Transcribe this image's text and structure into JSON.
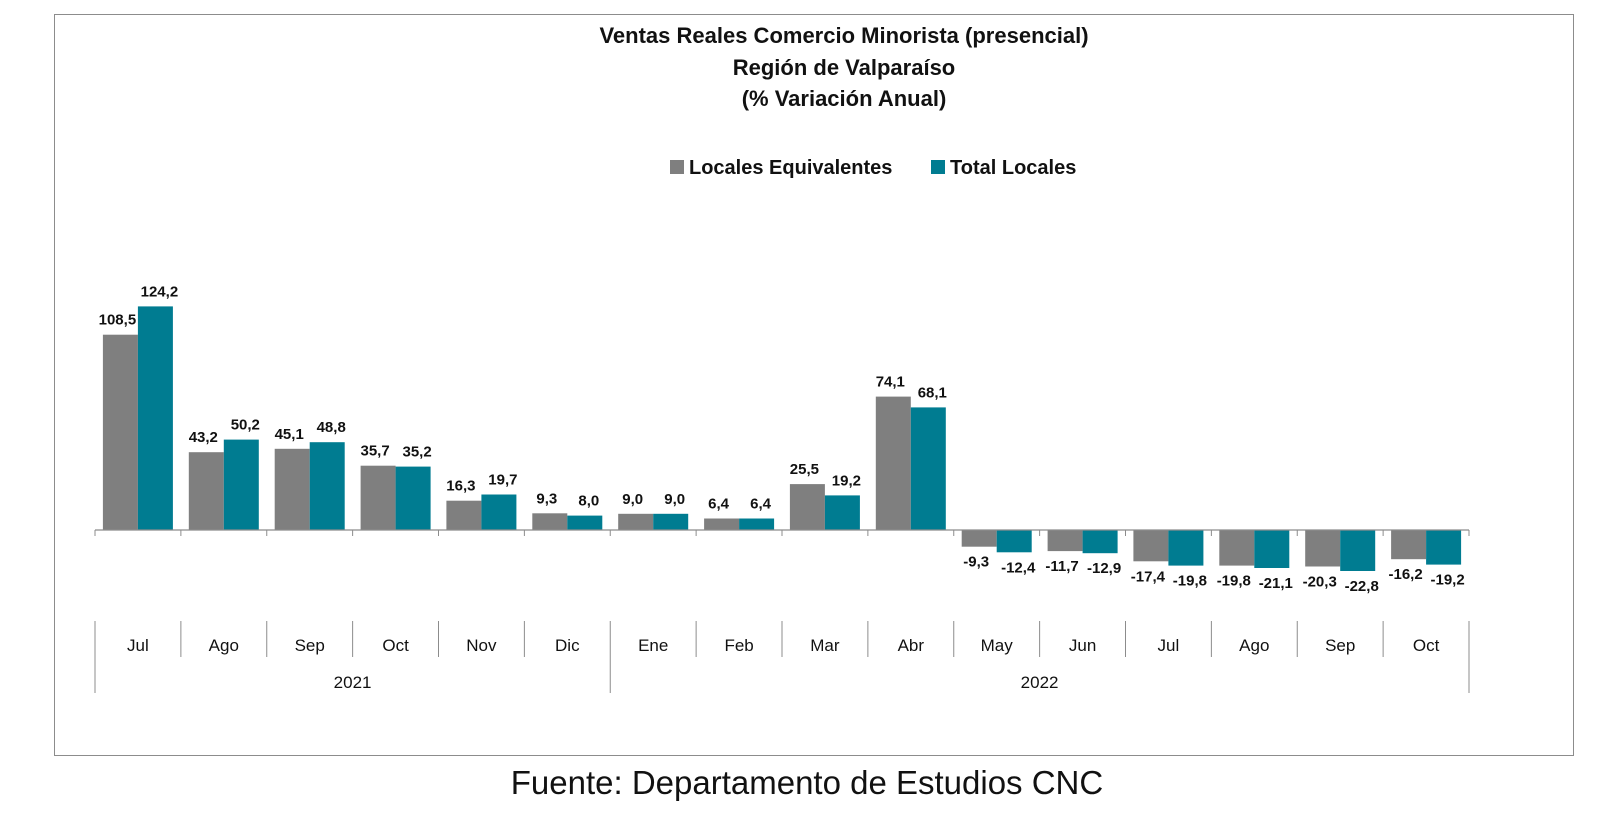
{
  "colors": {
    "series1": "#7f7f7f",
    "series2": "#007c91",
    "axis": "#8c8c8c",
    "text": "#111111"
  },
  "source_note": "Fuente: Departamento de Estudios CNC",
  "chart_data": {
    "type": "bar",
    "title_lines": [
      "Ventas Reales Comercio Minorista (presencial)",
      "Región de Valparaíso",
      "(% Variación Anual)"
    ],
    "categories": [
      "Jul",
      "Ago",
      "Sep",
      "Oct",
      "Nov",
      "Dic",
      "Ene",
      "Feb",
      "Mar",
      "Abr",
      "May",
      "Jun",
      "Jul",
      "Ago",
      "Sep",
      "Oct"
    ],
    "groups": [
      {
        "label": "2021",
        "start": 0,
        "end": 5
      },
      {
        "label": "2022",
        "start": 6,
        "end": 15
      }
    ],
    "series": [
      {
        "name": "Locales Equivalentes",
        "color": "#7f7f7f",
        "values": [
          108.5,
          43.2,
          45.1,
          35.7,
          16.3,
          9.3,
          9.0,
          6.4,
          25.5,
          74.1,
          -9.3,
          -11.7,
          -17.4,
          -19.8,
          -20.3,
          -16.2
        ],
        "labels": [
          "108,5",
          "43,2",
          "45,1",
          "35,7",
          "16,3",
          "9,3",
          "9,0",
          "6,4",
          "25,5",
          "74,1",
          "-9,3",
          "-11,7",
          "-17,4",
          "-19,8",
          "-20,3",
          "-16,2"
        ]
      },
      {
        "name": "Total Locales",
        "color": "#007c91",
        "values": [
          124.2,
          50.2,
          48.8,
          35.2,
          19.7,
          8.0,
          9.0,
          6.4,
          19.2,
          68.1,
          -12.4,
          -12.9,
          -19.8,
          -21.1,
          -22.8,
          -19.2
        ],
        "labels": [
          "124,2",
          "50,2",
          "48,8",
          "35,2",
          "19,7",
          "8,0",
          "9,0",
          "6,4",
          "19,2",
          "68,1",
          "-12,4",
          "-12,9",
          "-19,8",
          "-21,1",
          "-22,8",
          "-19,2"
        ]
      }
    ],
    "legend_position": "top-center",
    "grid": false,
    "ylim": [
      -30,
      130
    ]
  }
}
